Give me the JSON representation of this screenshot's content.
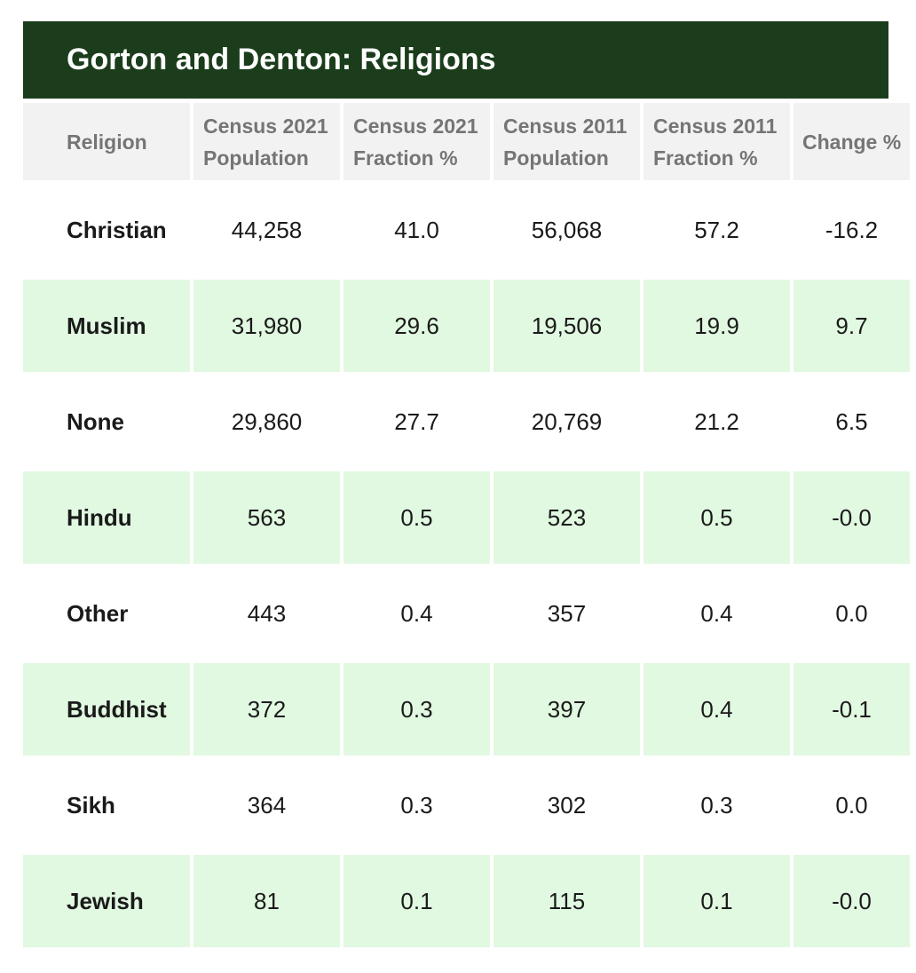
{
  "title": "Gorton and Denton: Religions",
  "headers": {
    "religion": "Religion",
    "pop2021_line1": "Census 2021",
    "pop2021_line2": "Population",
    "frac2021_line1": "Census 2021",
    "frac2021_line2": "Fraction %",
    "pop2011_line1": "Census 2011",
    "pop2011_line2": "Population",
    "frac2011_line1": "Census 2011",
    "frac2011_line2": "Fraction %",
    "change": "Change %"
  },
  "rows": [
    {
      "religion": "Christian",
      "pop2021": "44,258",
      "frac2021": "41.0",
      "pop2011": "56,068",
      "frac2011": "57.2",
      "change": "-16.2"
    },
    {
      "religion": "Muslim",
      "pop2021": "31,980",
      "frac2021": "29.6",
      "pop2011": "19,506",
      "frac2011": "19.9",
      "change": "9.7"
    },
    {
      "religion": "None",
      "pop2021": "29,860",
      "frac2021": "27.7",
      "pop2011": "20,769",
      "frac2011": "21.2",
      "change": "6.5"
    },
    {
      "religion": "Hindu",
      "pop2021": "563",
      "frac2021": "0.5",
      "pop2011": "523",
      "frac2011": "0.5",
      "change": "-0.0"
    },
    {
      "religion": "Other",
      "pop2021": "443",
      "frac2021": "0.4",
      "pop2011": "357",
      "frac2011": "0.4",
      "change": "0.0"
    },
    {
      "religion": "Buddhist",
      "pop2021": "372",
      "frac2021": "0.3",
      "pop2011": "397",
      "frac2011": "0.4",
      "change": "-0.1"
    },
    {
      "religion": "Sikh",
      "pop2021": "364",
      "frac2021": "0.3",
      "pop2011": "302",
      "frac2011": "0.3",
      "change": "0.0"
    },
    {
      "religion": "Jewish",
      "pop2021": "81",
      "frac2021": "0.1",
      "pop2011": "115",
      "frac2011": "0.1",
      "change": "-0.0"
    }
  ],
  "colors": {
    "title_background": "#1b3d1b",
    "header_background": "#f2f2f2",
    "shaded_row": "#e1f8e1"
  }
}
